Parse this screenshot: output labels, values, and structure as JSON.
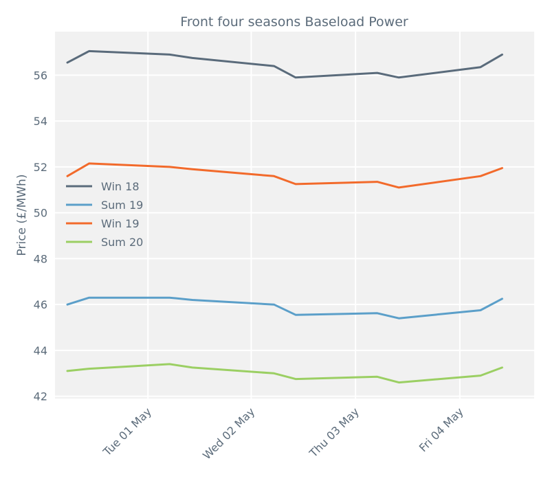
{
  "chart_data": {
    "type": "line",
    "title": "Front four seasons Baseload Power",
    "xlabel": "",
    "ylabel": "Price (£/MWh)",
    "ylim": [
      41.9,
      57.9
    ],
    "yticks": [
      42,
      44,
      46,
      48,
      50,
      52,
      54,
      56
    ],
    "xlim": [
      -0.12,
      4.52
    ],
    "xticks": [
      {
        "pos": 0.78,
        "label": "Tue 01 May"
      },
      {
        "pos": 1.78,
        "label": "Wed 02 May"
      },
      {
        "pos": 2.79,
        "label": "Thu 03 May"
      },
      {
        "pos": 3.8,
        "label": "Fri 04 May"
      }
    ],
    "grid": true,
    "legend_position": "center-left",
    "x": [
      0.0,
      0.21,
      0.99,
      1.21,
      2.0,
      2.21,
      3.0,
      3.21,
      4.0,
      4.21
    ],
    "series": [
      {
        "name": "Win 18",
        "color": "#5a6b7b",
        "values": [
          56.55,
          57.05,
          56.9,
          56.75,
          56.4,
          55.9,
          56.1,
          55.9,
          56.35,
          56.9
        ]
      },
      {
        "name": "Sum 19",
        "color": "#5b9fc9",
        "values": [
          46.0,
          46.3,
          46.3,
          46.2,
          46.0,
          45.55,
          45.62,
          45.4,
          45.75,
          46.25
        ]
      },
      {
        "name": "Win 19",
        "color": "#f26a2b",
        "values": [
          51.6,
          52.15,
          52.0,
          51.9,
          51.6,
          51.25,
          51.35,
          51.1,
          51.6,
          51.95
        ]
      },
      {
        "name": "Sum 20",
        "color": "#9bcf63",
        "values": [
          43.1,
          43.2,
          43.4,
          43.25,
          43.0,
          42.75,
          42.85,
          42.6,
          42.9,
          43.25
        ]
      }
    ]
  }
}
